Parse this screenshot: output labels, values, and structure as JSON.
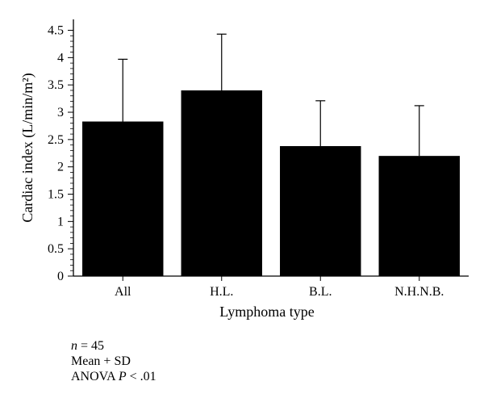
{
  "chart_data": {
    "type": "bar",
    "categories": [
      "All",
      "H.L.",
      "B.L.",
      "N.H.N.B."
    ],
    "values": [
      2.83,
      3.4,
      2.38,
      2.2
    ],
    "error_plus": [
      1.14,
      1.03,
      0.83,
      0.92
    ],
    "xlabel": "Lymphoma type",
    "ylabel": "Cardiac index (L/min/m²)",
    "ylim": [
      0,
      4.7
    ],
    "yticks": [
      0,
      0.5,
      1,
      1.5,
      2,
      2.5,
      3,
      3.5,
      4,
      4.5
    ],
    "ytick_labels": [
      "0",
      "0.5",
      "1",
      "1.5",
      "2",
      "2.5",
      "3",
      "3.5",
      "4",
      "4.5"
    ],
    "bar_color": "#000000",
    "grid": false
  },
  "notes": {
    "n_prefix": "n",
    "n_value": " = 45",
    "summary": "Mean + SD",
    "test_prefix": "ANOVA ",
    "test_p": "P",
    "test_value": " < .01"
  }
}
